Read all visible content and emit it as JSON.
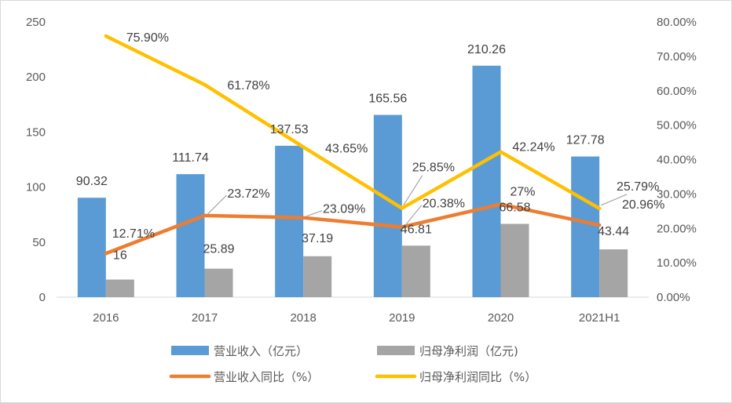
{
  "chart_data": {
    "type": "bar",
    "categories": [
      "2016",
      "2017",
      "2018",
      "2019",
      "2020",
      "2021H1"
    ],
    "left_axis": {
      "min": 0,
      "max": 250,
      "step": 50,
      "ticks": [
        "0",
        "50",
        "100",
        "150",
        "200",
        "250"
      ]
    },
    "right_axis": {
      "min": 0,
      "max": 0.8,
      "step": 0.1,
      "ticks": [
        "0.00%",
        "10.00%",
        "20.00%",
        "30.00%",
        "40.00%",
        "50.00%",
        "60.00%",
        "70.00%",
        "80.00%"
      ]
    },
    "series": [
      {
        "name": "营业收入（亿元）",
        "kind": "bar",
        "axis": "left",
        "color": "#5b9bd5",
        "values": [
          90.32,
          111.74,
          137.53,
          165.56,
          210.26,
          127.78
        ],
        "labels": [
          "90.32",
          "111.74",
          "137.53",
          "165.56",
          "210.26",
          "127.78"
        ]
      },
      {
        "name": "归母净利润（亿元)",
        "kind": "bar",
        "axis": "left",
        "color": "#a5a5a5",
        "values": [
          16,
          25.89,
          37.19,
          46.81,
          66.58,
          43.44
        ],
        "labels": [
          "16",
          "25.89",
          "37.19",
          "46.81",
          "66.58",
          "43.44"
        ]
      },
      {
        "name": "营业收入同比（%）",
        "kind": "line",
        "axis": "right",
        "color": "#ed7d31",
        "values": [
          0.1271,
          0.2372,
          0.2309,
          0.2038,
          0.27,
          0.2096
        ],
        "labels": [
          "12.71%",
          "23.72%",
          "23.09%",
          "20.38%",
          "27%",
          "20.96%"
        ]
      },
      {
        "name": "归母净利润同比（%）",
        "kind": "line",
        "axis": "right",
        "color": "#ffc000",
        "values": [
          0.759,
          0.6178,
          0.4365,
          0.2585,
          0.4224,
          0.2579
        ],
        "labels": [
          "75.90%",
          "61.78%",
          "43.65%",
          "25.85%",
          "42.24%",
          "25.79%"
        ]
      }
    ],
    "grid": false,
    "legend_position": "bottom"
  }
}
